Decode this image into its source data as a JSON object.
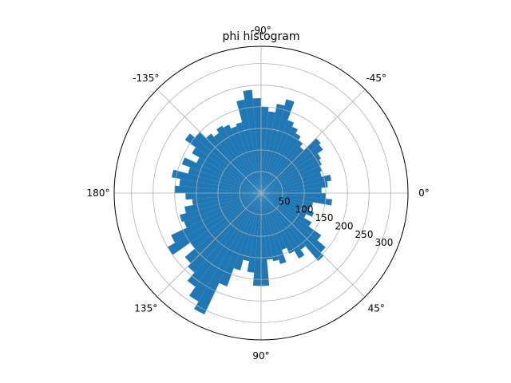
{
  "chart_data": {
    "type": "bar",
    "projection": "polar",
    "title": "phi histogram",
    "theta_direction": "clockwise",
    "theta_zero": "east",
    "theta_unit": "degrees",
    "theta_tick_labels": [
      "0°",
      "45°",
      "90°",
      "135°",
      "180°",
      "-135°",
      "-90°",
      "-45°"
    ],
    "r_tick_labels": [
      "50",
      "100",
      "150",
      "200",
      "250",
      "300"
    ],
    "r_ticks": [
      50,
      100,
      150,
      200,
      250,
      300
    ],
    "r_lim": [
      0,
      340
    ],
    "grid": true,
    "bar_color": "#1f77b4",
    "bin_width_deg": 5,
    "bin_centers_deg": [
      2.5,
      7.5,
      12.5,
      17.5,
      22.5,
      27.5,
      32.5,
      37.5,
      42.5,
      47.5,
      52.5,
      57.5,
      62.5,
      67.5,
      72.5,
      77.5,
      82.5,
      87.5,
      92.5,
      97.5,
      102.5,
      107.5,
      112.5,
      117.5,
      122.5,
      127.5,
      132.5,
      137.5,
      142.5,
      147.5,
      152.5,
      157.5,
      162.5,
      167.5,
      172.5,
      177.5,
      182.5,
      187.5,
      192.5,
      197.5,
      202.5,
      207.5,
      212.5,
      217.5,
      222.5,
      227.5,
      232.5,
      237.5,
      242.5,
      247.5,
      252.5,
      257.5,
      262.5,
      267.5,
      272.5,
      277.5,
      282.5,
      287.5,
      292.5,
      297.5,
      302.5,
      307.5,
      312.5,
      317.5,
      322.5,
      327.5,
      332.5,
      337.5,
      342.5,
      347.5,
      352.5,
      357.5
    ],
    "values": [
      150,
      165,
      122,
      118,
      130,
      115,
      135,
      170,
      195,
      205,
      160,
      175,
      155,
      140,
      170,
      160,
      155,
      215,
      215,
      185,
      160,
      185,
      230,
      310,
      290,
      265,
      240,
      230,
      200,
      250,
      230,
      190,
      195,
      180,
      160,
      175,
      200,
      190,
      210,
      175,
      195,
      165,
      185,
      215,
      200,
      180,
      170,
      180,
      175,
      165,
      170,
      220,
      240,
      220,
      200,
      190,
      210,
      225,
      180,
      170,
      160,
      150,
      140,
      180,
      175,
      160,
      155,
      150,
      145,
      165,
      155,
      140
    ]
  }
}
